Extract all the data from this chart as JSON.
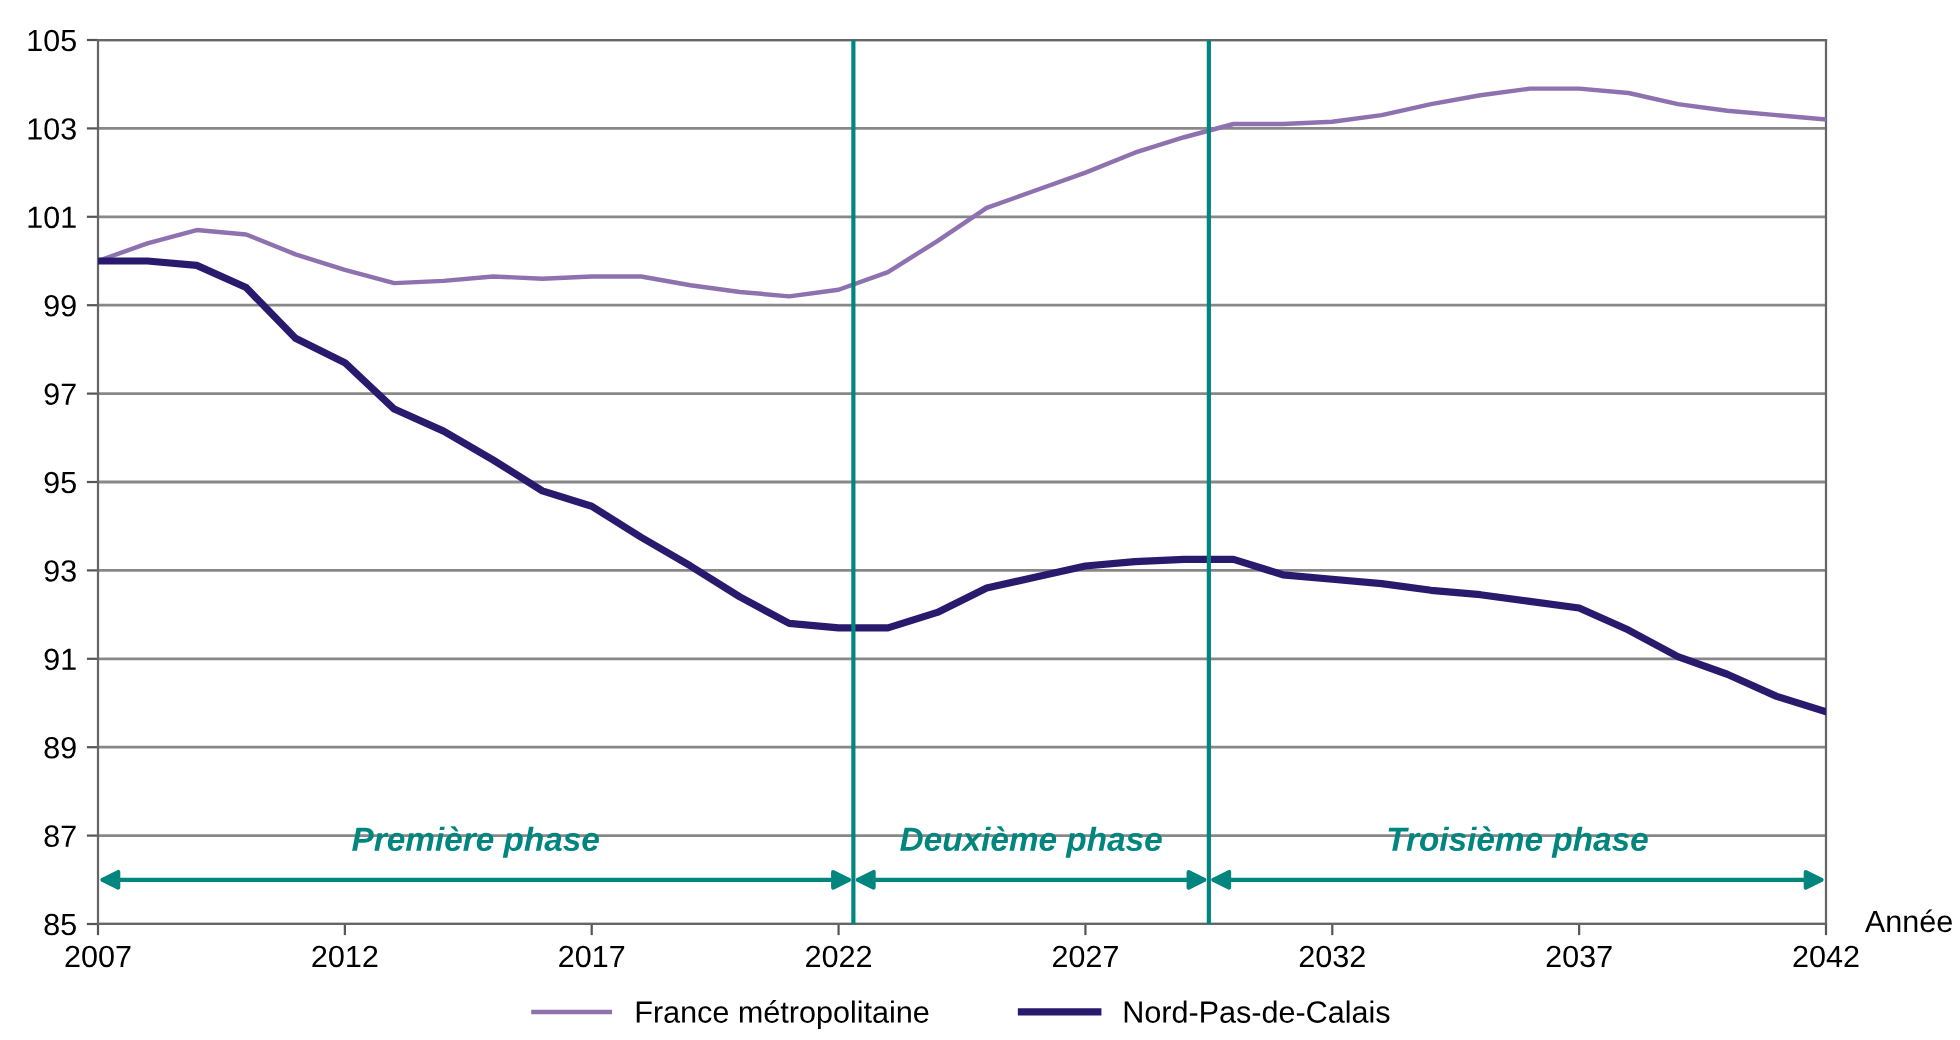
{
  "chart_data": {
    "type": "line",
    "xlabel": "Année",
    "x": [
      2007,
      2008,
      2009,
      2010,
      2011,
      2012,
      2013,
      2014,
      2015,
      2016,
      2017,
      2018,
      2019,
      2020,
      2021,
      2022,
      2023,
      2024,
      2025,
      2026,
      2027,
      2028,
      2029,
      2030,
      2031,
      2032,
      2033,
      2034,
      2035,
      2036,
      2037,
      2038,
      2039,
      2040,
      2041,
      2042
    ],
    "series": [
      {
        "name": "France métropolitaine",
        "color": "#8e72b0",
        "values": [
          100,
          100.4,
          100.7,
          100.6,
          100.15,
          99.8,
          99.5,
          99.55,
          99.65,
          99.6,
          99.65,
          99.65,
          99.45,
          99.3,
          99.2,
          99.35,
          99.75,
          100.45,
          101.2,
          101.6,
          102.0,
          102.45,
          102.8,
          103.1,
          103.1,
          103.15,
          103.3,
          103.55,
          103.75,
          103.9,
          103.9,
          103.8,
          103.55,
          103.4,
          103.3,
          103.2
        ]
      },
      {
        "name": "Nord-Pas-de-Calais",
        "color": "#2a1a6e",
        "values": [
          100,
          100,
          99.9,
          99.4,
          98.25,
          97.7,
          96.65,
          96.15,
          95.5,
          94.8,
          94.45,
          93.75,
          93.1,
          92.4,
          91.8,
          91.7,
          91.7,
          92.05,
          92.6,
          92.85,
          93.1,
          93.2,
          93.25,
          93.25,
          92.9,
          92.8,
          92.7,
          92.55,
          92.45,
          92.3,
          92.15,
          91.65,
          91.05,
          90.65,
          90.15,
          89.8
        ]
      }
    ],
    "xlim": [
      2007,
      2042
    ],
    "xticks": [
      2007,
      2012,
      2017,
      2022,
      2027,
      2032,
      2037,
      2042
    ],
    "ylim": [
      85,
      105
    ],
    "yticks": [
      85,
      87,
      89,
      91,
      93,
      95,
      97,
      99,
      101,
      103,
      105
    ],
    "ref_lines": [
      {
        "axis": "x",
        "value": 2022.3,
        "color": "#00857f"
      },
      {
        "axis": "x",
        "value": 2029.5,
        "color": "#00857f"
      }
    ],
    "annotations": [
      "Première phase",
      "Deuxième phase",
      "Troisième phase"
    ],
    "grid": "y",
    "legend": "bottom",
    "marker": "none",
    "line_style": "solid"
  }
}
